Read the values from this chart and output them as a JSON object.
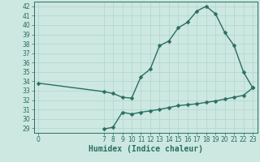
{
  "xlabel": "Humidex (Indice chaleur)",
  "bg_color": "#cce8e0",
  "line_color": "#2a6e62",
  "grid_color": "#b0d4cc",
  "ylim": [
    28.5,
    42.5
  ],
  "yticks": [
    29,
    30,
    31,
    32,
    33,
    34,
    35,
    36,
    37,
    38,
    39,
    40,
    41,
    42
  ],
  "xticks": [
    0,
    7,
    8,
    9,
    10,
    11,
    12,
    13,
    14,
    15,
    16,
    17,
    18,
    19,
    20,
    21,
    22,
    23
  ],
  "xlim": [
    -0.5,
    23.5
  ],
  "line1_x": [
    0,
    7,
    8,
    9,
    10,
    11,
    12,
    13,
    14,
    15,
    16,
    17,
    18,
    19,
    20,
    21,
    22,
    23
  ],
  "line1_y": [
    33.8,
    32.9,
    32.7,
    32.3,
    32.2,
    34.5,
    35.3,
    37.8,
    38.3,
    39.7,
    40.3,
    41.5,
    42.0,
    41.2,
    39.2,
    37.8,
    35.0,
    33.3
  ],
  "line2_x": [
    7,
    8,
    9,
    10,
    11,
    12,
    13,
    14,
    15,
    16,
    17,
    18,
    19,
    20,
    21,
    22,
    23
  ],
  "line2_y": [
    28.9,
    29.1,
    30.7,
    30.5,
    30.7,
    30.85,
    31.0,
    31.2,
    31.4,
    31.5,
    31.6,
    31.75,
    31.9,
    32.1,
    32.3,
    32.5,
    33.3
  ],
  "markersize": 2.5,
  "linewidth": 1.0,
  "tick_fontsize": 5.5,
  "xlabel_fontsize": 7
}
